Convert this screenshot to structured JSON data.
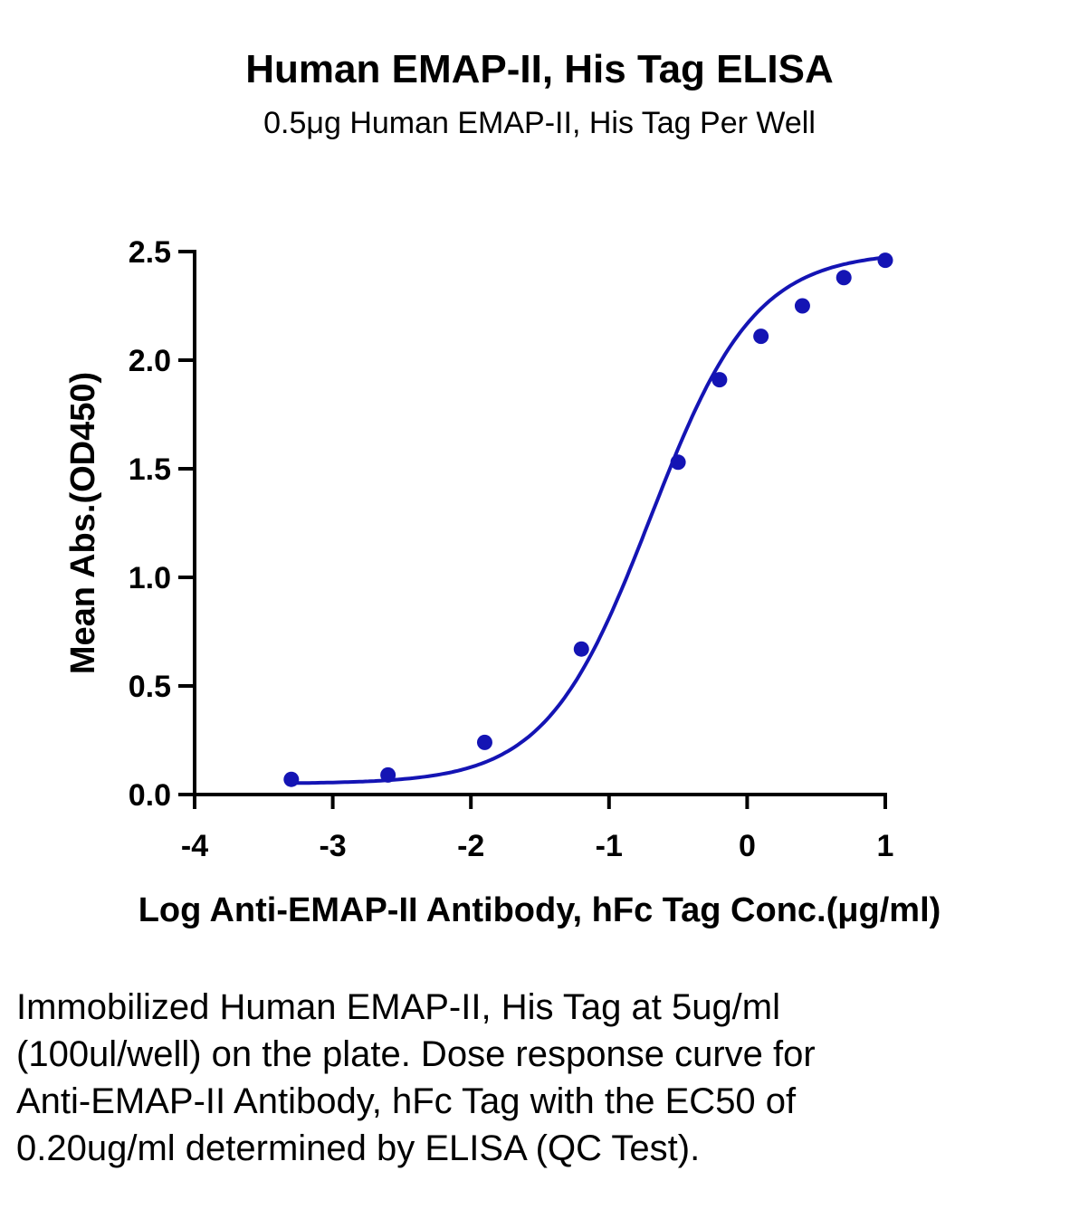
{
  "chart_data": {
    "type": "scatter",
    "title": "Human EMAP-II, His Tag ELISA",
    "subtitle": "0.5μg Human EMAP-II, His Tag Per Well",
    "xlabel": "Log Anti-EMAP-II Antibody, hFc Tag Conc.(μg/ml)",
    "ylabel": "Mean Abs.(OD450)",
    "xlim": [
      -4,
      1
    ],
    "ylim": [
      0,
      2.5
    ],
    "x_ticks": [
      "-4",
      "-3",
      "-2",
      "-1",
      "0",
      "1"
    ],
    "y_ticks": [
      "0.0",
      "0.5",
      "1.0",
      "1.5",
      "2.0",
      "2.5"
    ],
    "grid": false,
    "series": [
      {
        "points": [
          {
            "x": -3.3,
            "y": 0.07
          },
          {
            "x": -2.6,
            "y": 0.09
          },
          {
            "x": -1.9,
            "y": 0.24
          },
          {
            "x": -1.2,
            "y": 0.67
          },
          {
            "x": -0.5,
            "y": 1.53
          },
          {
            "x": -0.2,
            "y": 1.91
          },
          {
            "x": 0.1,
            "y": 2.11
          },
          {
            "x": 0.4,
            "y": 2.25
          },
          {
            "x": 0.7,
            "y": 2.38
          },
          {
            "x": 1.0,
            "y": 2.46
          }
        ],
        "fit": {
          "model": "4PL",
          "bottom": 0.05,
          "top": 2.5,
          "logEC50": -0.7,
          "hill": 1.15
        },
        "color": "#1414b4"
      }
    ]
  },
  "caption": "Immobilized Human EMAP-II, His Tag at 5ug/ml (100ul/well) on the plate. Dose response curve for Anti-EMAP-II Antibody, hFc Tag with the EC50 of 0.20ug/ml determined by ELISA (QC Test)."
}
